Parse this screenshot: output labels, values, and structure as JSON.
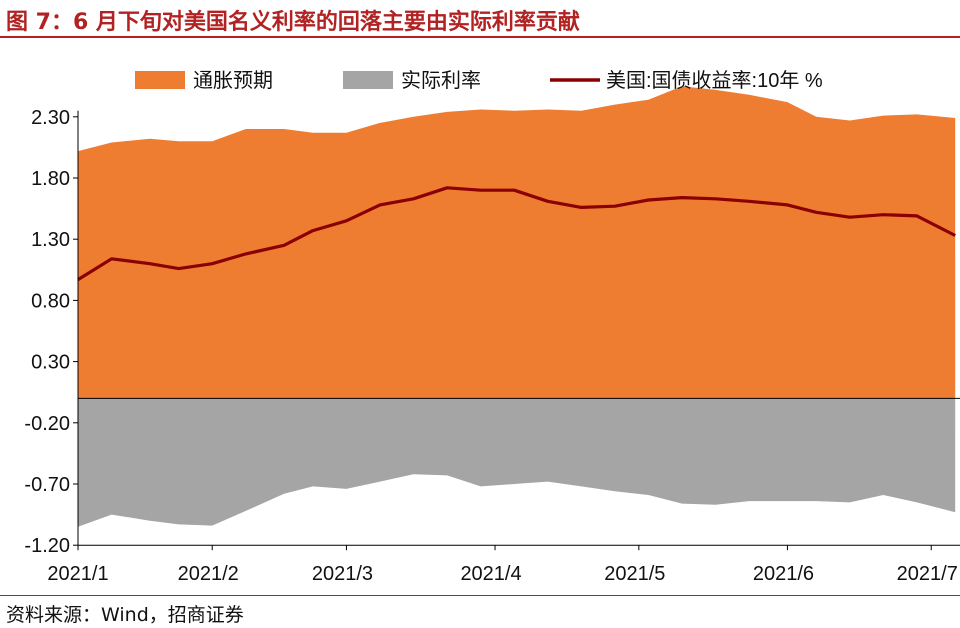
{
  "title": "图 7：6 月下旬对美国名义利率的回落主要由实际利率贡献",
  "source": "资料来源：Wind，招商证券",
  "colors": {
    "inflation": "#ee7d31",
    "real": "#a5a5a5",
    "nominal": "#8b0000",
    "title": "#b22222"
  },
  "chart_data": {
    "type": "area",
    "x_labels": [
      "2021/1",
      "2021/2",
      "2021/3",
      "2021/4",
      "2021/5",
      "2021/6",
      "2021/7"
    ],
    "ylim": [
      -1.2,
      2.55
    ],
    "y_ticks": [
      "2.30",
      "1.80",
      "1.30",
      "0.80",
      "0.30",
      "-0.20",
      "-0.70",
      "-1.20"
    ],
    "legend": [
      "通胀预期",
      "实际利率",
      "美国:国债收益率:10年 %"
    ],
    "legend_position": "top",
    "grid": false,
    "dates": [
      "2021-01-04",
      "2021-01-11",
      "2021-01-19",
      "2021-01-25",
      "2021-02-01",
      "2021-02-08",
      "2021-02-16",
      "2021-02-22",
      "2021-03-01",
      "2021-03-08",
      "2021-03-15",
      "2021-03-22",
      "2021-03-29",
      "2021-04-05",
      "2021-04-12",
      "2021-04-19",
      "2021-04-26",
      "2021-05-03",
      "2021-05-10",
      "2021-05-17",
      "2021-05-24",
      "2021-06-01",
      "2021-06-07",
      "2021-06-14",
      "2021-06-21",
      "2021-06-28",
      "2021-07-06"
    ],
    "series": [
      {
        "name": "通胀预期",
        "values": [
          2.02,
          2.09,
          2.12,
          2.1,
          2.1,
          2.2,
          2.2,
          2.17,
          2.17,
          2.25,
          2.3,
          2.34,
          2.36,
          2.35,
          2.36,
          2.35,
          2.4,
          2.44,
          2.55,
          2.52,
          2.48,
          2.42,
          2.3,
          2.27,
          2.31,
          2.32,
          2.29
        ]
      },
      {
        "name": "实际利率",
        "values": [
          -1.05,
          -0.95,
          -1.0,
          -1.03,
          -1.04,
          -0.92,
          -0.78,
          -0.72,
          -0.74,
          -0.68,
          -0.62,
          -0.63,
          -0.72,
          -0.7,
          -0.68,
          -0.72,
          -0.76,
          -0.79,
          -0.86,
          -0.87,
          -0.84,
          -0.84,
          -0.84,
          -0.85,
          -0.79,
          -0.85,
          -0.93
        ]
      },
      {
        "name": "美国:国债收益率:10年 %",
        "values": [
          0.97,
          1.14,
          1.1,
          1.06,
          1.1,
          1.18,
          1.25,
          1.37,
          1.45,
          1.58,
          1.63,
          1.72,
          1.7,
          1.7,
          1.61,
          1.56,
          1.57,
          1.62,
          1.64,
          1.63,
          1.61,
          1.58,
          1.52,
          1.48,
          1.5,
          1.49,
          1.33
        ]
      }
    ]
  }
}
